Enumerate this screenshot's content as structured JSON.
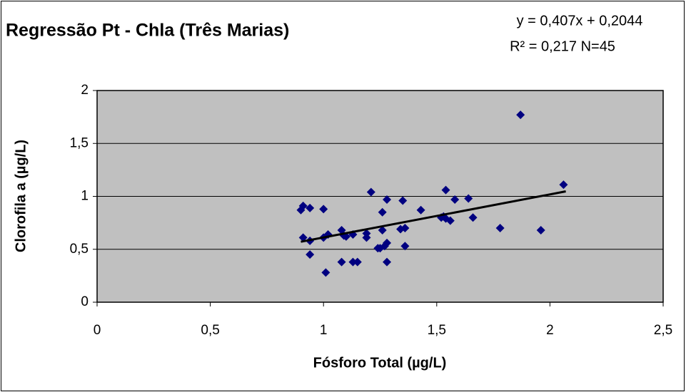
{
  "chart_data": {
    "type": "scatter",
    "title": "Regressão Pt - Chla (Três Marias)",
    "equation": "y = 0,407x + 0,2044",
    "r_squared": "R² = 0,217 N=45",
    "x_label": "Fósforo Total (µg/L)",
    "y_label": "Clorofila a (µg/L)",
    "xlim": [
      0,
      2.5
    ],
    "ylim": [
      0,
      2
    ],
    "xticks": [
      0,
      {
        "value": 0.5,
        "label": "0,5"
      },
      1,
      {
        "value": 1.5,
        "label": "1,5"
      },
      2,
      {
        "value": 2.5,
        "label": "2,5"
      }
    ],
    "yticks": [
      0,
      {
        "value": 0.5,
        "label": "0,5"
      },
      1,
      {
        "value": 1.5,
        "label": "1,5"
      },
      2
    ],
    "grid": true,
    "color": "#000080",
    "x": [
      0.9,
      0.91,
      0.91,
      0.94,
      0.94,
      0.94,
      1.0,
      1.0,
      1.02,
      1.01,
      1.08,
      1.09,
      1.08,
      1.13,
      1.13,
      1.15,
      1.19,
      1.19,
      1.21,
      1.24,
      1.25,
      1.26,
      1.26,
      1.27,
      1.28,
      1.28,
      1.28,
      1.34,
      1.36,
      1.35,
      1.36,
      1.43,
      1.52,
      1.54,
      1.53,
      1.54,
      1.56,
      1.58,
      1.64,
      1.66,
      1.78,
      1.87,
      1.96,
      2.06,
      1.1
    ],
    "y": [
      0.87,
      0.91,
      0.61,
      0.89,
      0.58,
      0.45,
      0.88,
      0.61,
      0.64,
      0.28,
      0.68,
      0.63,
      0.38,
      0.64,
      0.38,
      0.38,
      0.61,
      0.65,
      1.04,
      0.51,
      0.51,
      0.68,
      0.85,
      0.53,
      0.56,
      0.97,
      0.38,
      0.69,
      0.7,
      0.96,
      0.53,
      0.87,
      0.8,
      1.06,
      0.81,
      0.79,
      0.77,
      0.97,
      0.98,
      0.8,
      0.7,
      1.77,
      0.68,
      1.11,
      0.62
    ],
    "trendline": {
      "x": [
        0.9,
        2.07
      ],
      "y": [
        0.571,
        1.047
      ],
      "color": "#000000"
    }
  }
}
